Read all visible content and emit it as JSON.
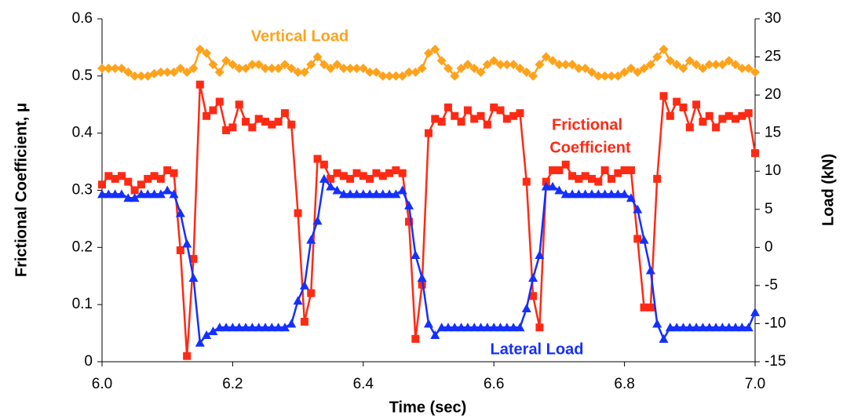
{
  "chart_data": {
    "type": "line",
    "x_label": "Time (sec)",
    "y_label": "Frictional Coefficient, μ",
    "y2_label": "Load (kN)",
    "annotations": [
      "Vertical Load",
      "Frictional",
      "Coefficient",
      "Lateral Load"
    ],
    "x": [
      6,
      6.01,
      6.02,
      6.03,
      6.04,
      6.05,
      6.06,
      6.07,
      6.08,
      6.09,
      6.1,
      6.11,
      6.12,
      6.13,
      6.14,
      6.15,
      6.16,
      6.17,
      6.18,
      6.19,
      6.2,
      6.21,
      6.22,
      6.23,
      6.24,
      6.25,
      6.26,
      6.27,
      6.28,
      6.29,
      6.3,
      6.31,
      6.32,
      6.33,
      6.34,
      6.35,
      6.36,
      6.37,
      6.38,
      6.39,
      6.4,
      6.41,
      6.42,
      6.43,
      6.44,
      6.45,
      6.46,
      6.47,
      6.48,
      6.49,
      6.5,
      6.51,
      6.52,
      6.53,
      6.54,
      6.55,
      6.56,
      6.57,
      6.58,
      6.59,
      6.6,
      6.61,
      6.62,
      6.63,
      6.64,
      6.65,
      6.66,
      6.67,
      6.68,
      6.69,
      6.7,
      6.71,
      6.72,
      6.73,
      6.74,
      6.75,
      6.76,
      6.77,
      6.78,
      6.79,
      6.8,
      6.81,
      6.82,
      6.83,
      6.84,
      6.85,
      6.86,
      6.87,
      6.88,
      6.89,
      6.9,
      6.91,
      6.92,
      6.93,
      6.94,
      6.95,
      6.96,
      6.97,
      6.98,
      6.99,
      7
    ],
    "series": [
      {
        "name": "Vertical Load",
        "color": "#ffa21c",
        "marker": "diamond",
        "axis": "y2",
        "values": [
          23.5,
          23.5,
          23.5,
          23.5,
          23,
          22.5,
          22.5,
          22.5,
          22.8,
          23,
          23,
          23,
          23.5,
          23,
          23.5,
          26,
          25.5,
          24,
          23,
          24.5,
          24,
          23.5,
          23.5,
          24,
          24,
          23.5,
          23.5,
          23.5,
          24,
          23.5,
          23,
          23,
          24,
          25,
          24,
          23.5,
          24,
          23.5,
          23.5,
          23.5,
          23.5,
          23,
          23,
          22.5,
          22.5,
          22.5,
          22.5,
          23,
          23,
          23.5,
          25.5,
          26,
          24.5,
          23.5,
          22.5,
          23.5,
          24,
          23.5,
          23,
          24,
          24.5,
          24,
          24,
          24,
          23.5,
          23,
          22.5,
          24,
          25,
          24.5,
          24,
          24,
          24,
          23.5,
          23.5,
          23,
          22.5,
          22.5,
          22.5,
          22.5,
          23,
          23.5,
          23,
          23.5,
          24,
          25,
          26,
          24.5,
          24,
          23.5,
          24.5,
          24,
          23.5,
          24,
          24,
          24,
          24.5,
          24,
          23.5,
          23.5,
          23
        ]
      },
      {
        "name": "Frictional Coefficient",
        "color": "#ff2a14",
        "marker": "square",
        "axis": "y",
        "values": [
          0.31,
          0.325,
          0.32,
          0.325,
          0.315,
          0.3,
          0.31,
          0.32,
          0.325,
          0.32,
          0.335,
          0.33,
          0.195,
          0.01,
          0.18,
          0.485,
          0.43,
          0.44,
          0.455,
          0.405,
          0.41,
          0.45,
          0.42,
          0.41,
          0.425,
          0.42,
          0.415,
          0.42,
          0.435,
          0.415,
          0.26,
          0.07,
          0.12,
          0.355,
          0.345,
          0.32,
          0.33,
          0.325,
          0.32,
          0.33,
          0.325,
          0.32,
          0.33,
          0.325,
          0.33,
          0.335,
          0.33,
          0.245,
          0.04,
          0.135,
          0.4,
          0.425,
          0.42,
          0.445,
          0.43,
          0.42,
          0.44,
          0.425,
          0.43,
          0.415,
          0.445,
          0.44,
          0.425,
          0.43,
          0.435,
          0.315,
          0.115,
          0.06,
          0.315,
          0.335,
          0.335,
          0.345,
          0.325,
          0.32,
          0.325,
          0.32,
          0.315,
          0.335,
          0.32,
          0.33,
          0.335,
          0.335,
          0.215,
          0.095,
          0.095,
          0.32,
          0.465,
          0.43,
          0.455,
          0.445,
          0.41,
          0.45,
          0.42,
          0.43,
          0.41,
          0.425,
          0.43,
          0.425,
          0.43,
          0.435,
          0.365
        ]
      },
      {
        "name": "Lateral Load",
        "color": "#1430ff",
        "marker": "triangle",
        "axis": "y2",
        "values": [
          7,
          7,
          7,
          7,
          6.5,
          6.5,
          7,
          7,
          7,
          7,
          7.5,
          7,
          4.5,
          0.5,
          -4,
          -12.5,
          -11.5,
          -11,
          -10.5,
          -10.5,
          -10.5,
          -10.5,
          -10.5,
          -10.5,
          -10.5,
          -10.5,
          -10.5,
          -10.5,
          -10.5,
          -10,
          -7,
          -5,
          1,
          3.5,
          9,
          8,
          7.5,
          7,
          7,
          7,
          7,
          7,
          7,
          7,
          7,
          7,
          7.5,
          5.5,
          -1,
          -4,
          -10,
          -11.5,
          -10.5,
          -10.5,
          -10.5,
          -10.5,
          -10.5,
          -10.5,
          -10.5,
          -10.5,
          -10.5,
          -10.5,
          -10.5,
          -10.5,
          -10.5,
          -8,
          -4,
          -1,
          8,
          8,
          7.5,
          7,
          7,
          7,
          7,
          7,
          7,
          7,
          7,
          7,
          7,
          6.5,
          5,
          1,
          -3,
          -10,
          -12,
          -10.5,
          -10.5,
          -10.5,
          -10.5,
          -10.5,
          -10.5,
          -10.5,
          -10.5,
          -10.5,
          -10.5,
          -10.5,
          -10.5,
          -10.5,
          -8.5
        ]
      }
    ],
    "xlim": [
      6,
      7
    ],
    "xticks": [
      {
        "value": 6,
        "label": "6.0"
      },
      {
        "value": 6.2,
        "label": "6.2"
      },
      {
        "value": 6.4,
        "label": "6.4"
      },
      {
        "value": 6.6,
        "label": "6.6"
      },
      {
        "value": 6.8,
        "label": "6.8"
      },
      {
        "value": 7,
        "label": "7.0"
      }
    ],
    "ylim": [
      0,
      0.6
    ],
    "yticks": [
      0,
      0.1,
      0.2,
      0.3,
      0.4,
      0.5,
      0.6
    ],
    "y2lim": [
      -15,
      30
    ],
    "y2ticks": [
      -15,
      -10,
      -5,
      0,
      5,
      10,
      15,
      20,
      25,
      30
    ]
  }
}
